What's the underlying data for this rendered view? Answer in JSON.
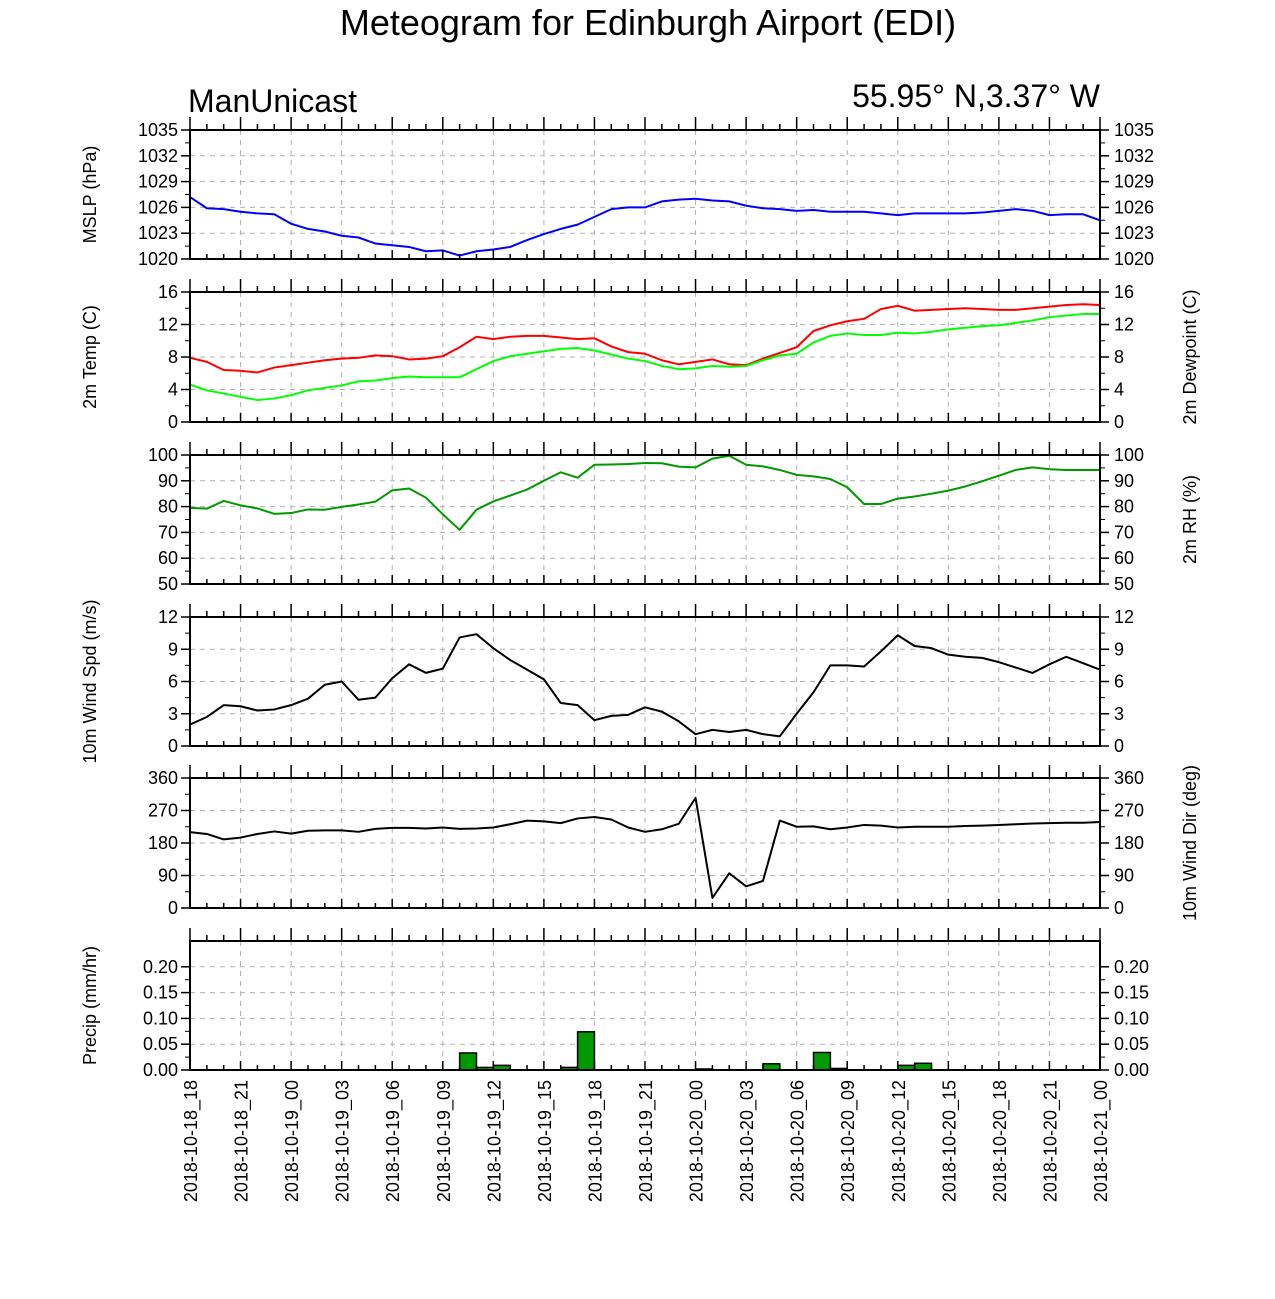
{
  "page": {
    "title": "Meteogram for Edinburgh Airport (EDI)",
    "model": "ManUnicast",
    "location": "55.95° N,3.37° W"
  },
  "chart_data": {
    "type": "line",
    "x_start": "2018-10-18_18",
    "x_end": "2018-10-21_00",
    "x_step_hours": 1,
    "x_tick_labels": [
      "2018-10-18_18",
      "2018-10-18_21",
      "2018-10-19_00",
      "2018-10-19_03",
      "2018-10-19_06",
      "2018-10-19_09",
      "2018-10-19_12",
      "2018-10-19_15",
      "2018-10-19_18",
      "2018-10-19_21",
      "2018-10-20_00",
      "2018-10-20_03",
      "2018-10-20_06",
      "2018-10-20_09",
      "2018-10-20_12",
      "2018-10-20_15",
      "2018-10-20_18",
      "2018-10-20_21",
      "2018-10-21_00"
    ],
    "grid": true,
    "panels": [
      {
        "id": "mslp",
        "type": "line",
        "ylabel_left": "MSLP (hPa)",
        "ylabel_right": "",
        "ylim": [
          1020,
          1035
        ],
        "yticks": [
          1020,
          1023,
          1026,
          1029,
          1032,
          1035
        ],
        "right_ticks": true,
        "series": [
          {
            "color": "#0000ff",
            "x": [
              0,
              1,
              2,
              3,
              4,
              5,
              6,
              7,
              8,
              9,
              10,
              11,
              12,
              13,
              14,
              15,
              16,
              17,
              18,
              19,
              20,
              21,
              22,
              23,
              24,
              25,
              26,
              27,
              28,
              29,
              30,
              31,
              32,
              33,
              34,
              35,
              36,
              37,
              38,
              39,
              40,
              41,
              42,
              43,
              44,
              45,
              46,
              47,
              48,
              49,
              50,
              51,
              52,
              53,
              54
            ],
            "values": [
              1027.2,
              1025.9,
              1025.8,
              1025.5,
              1025.3,
              1025.2,
              1024.1,
              1023.5,
              1023.2,
              1022.7,
              1022.5,
              1021.8,
              1021.6,
              1021.4,
              1020.9,
              1021.0,
              1020.4,
              1020.9,
              1021.1,
              1021.4,
              1022.2,
              1022.9,
              1023.5,
              1024.0,
              1024.9,
              1025.8,
              1026.0,
              1026.0,
              1026.7,
              1026.9,
              1027.0,
              1026.8,
              1026.7,
              1026.2,
              1025.9,
              1025.8,
              1025.6,
              1025.7,
              1025.5,
              1025.5,
              1025.5,
              1025.3,
              1025.1,
              1025.3,
              1025.3,
              1025.3,
              1025.3,
              1025.4,
              1025.6,
              1025.8,
              1025.6,
              1025.1,
              1025.2,
              1025.2,
              1024.5
            ]
          }
        ]
      },
      {
        "id": "temp",
        "type": "line",
        "ylabel_left": "2m Temp (C)",
        "ylabel_right": "2m Dewpoint (C)",
        "ylim": [
          0,
          16
        ],
        "yticks": [
          0,
          4,
          8,
          12,
          16
        ],
        "right_ticks": true,
        "series": [
          {
            "color": "#ff0000",
            "x": [
              0,
              1,
              2,
              3,
              4,
              5,
              6,
              7,
              8,
              9,
              10,
              11,
              12,
              13,
              14,
              15,
              16,
              17,
              18,
              19,
              20,
              21,
              22,
              23,
              24,
              25,
              26,
              27,
              28,
              29,
              30,
              31,
              32,
              33,
              34,
              35,
              36,
              37,
              38,
              39,
              40,
              41,
              42,
              43,
              44,
              45,
              46,
              47,
              48,
              49,
              50,
              51,
              52,
              53,
              54
            ],
            "values": [
              7.9,
              7.4,
              6.4,
              6.3,
              6.1,
              6.7,
              7.0,
              7.3,
              7.6,
              7.8,
              7.9,
              8.2,
              8.1,
              7.7,
              7.8,
              8.1,
              9.2,
              10.5,
              10.2,
              10.5,
              10.6,
              10.6,
              10.4,
              10.2,
              10.3,
              9.3,
              8.6,
              8.4,
              7.6,
              7.1,
              7.4,
              7.7,
              7.1,
              7.0,
              7.8,
              8.5,
              9.2,
              11.2,
              11.9,
              12.4,
              12.7,
              13.9,
              14.3,
              13.7,
              13.8,
              13.9,
              14.0,
              13.9,
              13.8,
              13.8,
              14.0,
              14.2,
              14.4,
              14.5,
              14.4
            ]
          },
          {
            "color": "#00ff00",
            "x": [
              0,
              1,
              2,
              3,
              4,
              5,
              6,
              7,
              8,
              9,
              10,
              11,
              12,
              13,
              14,
              15,
              16,
              17,
              18,
              19,
              20,
              21,
              22,
              23,
              24,
              25,
              26,
              27,
              28,
              29,
              30,
              31,
              32,
              33,
              34,
              35,
              36,
              37,
              38,
              39,
              40,
              41,
              42,
              43,
              44,
              45,
              46,
              47,
              48,
              49,
              50,
              51,
              52,
              53,
              54
            ],
            "values": [
              4.6,
              3.9,
              3.5,
              3.1,
              2.7,
              2.9,
              3.3,
              3.9,
              4.2,
              4.5,
              5.0,
              5.1,
              5.4,
              5.6,
              5.5,
              5.5,
              5.5,
              6.5,
              7.5,
              8.1,
              8.4,
              8.7,
              9.0,
              9.1,
              8.8,
              8.3,
              7.8,
              7.5,
              6.9,
              6.5,
              6.6,
              6.9,
              6.8,
              6.9,
              7.6,
              8.2,
              8.4,
              9.8,
              10.6,
              10.9,
              10.7,
              10.7,
              11.0,
              10.9,
              11.1,
              11.4,
              11.6,
              11.8,
              11.9,
              12.2,
              12.5,
              12.9,
              13.1,
              13.3,
              13.3
            ]
          }
        ]
      },
      {
        "id": "rh",
        "type": "line",
        "ylabel_left": "",
        "ylabel_right": "2m RH (%)",
        "ylim": [
          50,
          100
        ],
        "yticks": [
          50,
          60,
          70,
          80,
          90,
          100
        ],
        "right_ticks": true,
        "series": [
          {
            "color": "#009900",
            "x": [
              0,
              1,
              2,
              3,
              4,
              5,
              6,
              7,
              8,
              9,
              10,
              11,
              12,
              13,
              14,
              15,
              16,
              17,
              18,
              19,
              20,
              21,
              22,
              23,
              24,
              25,
              26,
              27,
              28,
              29,
              30,
              31,
              32,
              33,
              34,
              35,
              36,
              37,
              38,
              39,
              40,
              41,
              42,
              43,
              44,
              45,
              46,
              47,
              48,
              49,
              50,
              51,
              52,
              53,
              54
            ],
            "values": [
              79.5,
              79.2,
              82.2,
              80.5,
              79.3,
              77.2,
              77.5,
              78.9,
              78.8,
              79.9,
              80.8,
              81.9,
              86.3,
              87.0,
              83.5,
              77.0,
              71.0,
              78.8,
              82.0,
              84.3,
              86.6,
              90.0,
              93.3,
              91.2,
              96.2,
              96.3,
              96.5,
              96.9,
              96.8,
              95.5,
              95.2,
              98.6,
              99.7,
              96.2,
              95.6,
              94.2,
              92.3,
              91.7,
              90.7,
              87.5,
              81.0,
              81.0,
              83.1,
              83.9,
              85.0,
              86.2,
              87.8,
              89.8,
              92.0,
              94.2,
              95.2,
              94.5,
              94.2,
              94.2,
              94.2
            ]
          }
        ]
      },
      {
        "id": "wspd",
        "type": "line",
        "ylabel_left": "10m Wind Spd (m/s)",
        "ylabel_right": "",
        "ylim": [
          0,
          12
        ],
        "yticks": [
          0,
          3,
          6,
          9,
          12
        ],
        "right_ticks": true,
        "series": [
          {
            "color": "#000000",
            "x": [
              0,
              1,
              2,
              3,
              4,
              5,
              6,
              7,
              8,
              9,
              10,
              11,
              12,
              13,
              14,
              15,
              16,
              17,
              18,
              19,
              20,
              21,
              22,
              23,
              24,
              25,
              26,
              27,
              28,
              29,
              30,
              31,
              32,
              33,
              34,
              35,
              36,
              37,
              38,
              39,
              40,
              41,
              42,
              43,
              44,
              45,
              46,
              47,
              48,
              49,
              50,
              51,
              52,
              53,
              54
            ],
            "values": [
              2.0,
              2.7,
              3.8,
              3.7,
              3.3,
              3.4,
              3.8,
              4.4,
              5.7,
              6.0,
              4.3,
              4.5,
              6.3,
              7.6,
              6.8,
              7.2,
              10.1,
              10.4,
              9.1,
              8.0,
              7.1,
              6.2,
              4.0,
              3.8,
              2.4,
              2.8,
              2.9,
              3.6,
              3.2,
              2.3,
              1.1,
              1.5,
              1.3,
              1.5,
              1.1,
              0.9,
              3.0,
              5.0,
              7.5,
              7.5,
              7.4,
              8.8,
              10.3,
              9.3,
              9.1,
              8.5,
              8.3,
              8.2,
              7.8,
              7.3,
              6.8,
              7.6,
              8.3,
              7.7,
              7.1
            ]
          }
        ]
      },
      {
        "id": "wdir",
        "type": "line",
        "ylabel_left": "",
        "ylabel_right": "10m Wind Dir (deg)",
        "ylim": [
          0,
          360
        ],
        "yticks": [
          0,
          90,
          180,
          270,
          360
        ],
        "right_ticks": true,
        "series": [
          {
            "color": "#000000",
            "x": [
              0,
              1,
              2,
              3,
              4,
              5,
              6,
              7,
              8,
              9,
              10,
              11,
              12,
              13,
              14,
              15,
              16,
              17,
              18,
              19,
              20,
              21,
              22,
              23,
              24,
              25,
              26,
              27,
              28,
              29,
              30,
              31,
              32,
              33,
              34,
              35,
              36,
              37,
              38,
              39,
              40,
              41,
              42,
              43,
              44,
              45,
              46,
              47,
              48,
              49,
              50,
              51,
              52,
              53,
              54
            ],
            "values": [
              210,
              205,
              190,
              195,
              205,
              212,
              206,
              214,
              215,
              215,
              211,
              219,
              222,
              222,
              220,
              223,
              219,
              220,
              223,
              232,
              242,
              240,
              235,
              248,
              252,
              245,
              223,
              211,
              218,
              233,
              305,
              28,
              96,
              60,
              75,
              242,
              225,
              226,
              218,
              223,
              230,
              228,
              223,
              225,
              225,
              225,
              227,
              228,
              230,
              232,
              234,
              235,
              236,
              236,
              238
            ]
          }
        ]
      },
      {
        "id": "precip",
        "type": "bar",
        "ylabel_left": "Precip (mm/hr)",
        "ylabel_right": "",
        "ylim": [
          0,
          0.25
        ],
        "yticks": [
          0,
          0.05,
          0.1,
          0.15,
          0.2
        ],
        "ytick_labels": [
          "0.00",
          "0.05",
          "0.10",
          "0.15",
          "0.20"
        ],
        "right_ticks": true,
        "bar_color": "#009900",
        "bar_x": [
          16,
          17,
          18,
          22,
          23,
          30,
          34,
          37,
          38,
          42,
          43
        ],
        "values": [
          0.033,
          0.005,
          0.009,
          0.005,
          0.074,
          0.002,
          0.012,
          0.034,
          0.003,
          0.009,
          0.013
        ]
      }
    ]
  }
}
